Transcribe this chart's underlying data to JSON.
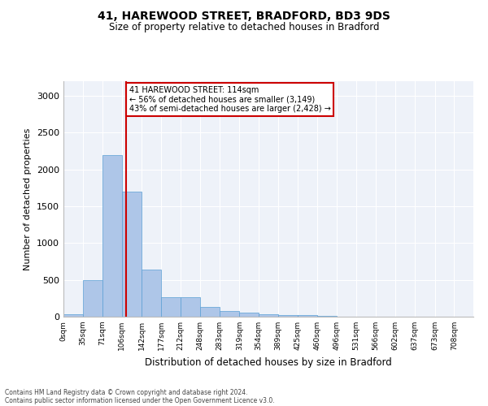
{
  "title1": "41, HAREWOOD STREET, BRADFORD, BD3 9DS",
  "title2": "Size of property relative to detached houses in Bradford",
  "xlabel": "Distribution of detached houses by size in Bradford",
  "ylabel": "Number of detached properties",
  "annotation_line1": "41 HAREWOOD STREET: 114sqm",
  "annotation_line2": "← 56% of detached houses are smaller (3,149)",
  "annotation_line3": "43% of semi-detached houses are larger (2,428) →",
  "property_size": 114,
  "bar_color": "#aec6e8",
  "bar_edge_color": "#5a9fd4",
  "marker_line_color": "#cc0000",
  "annotation_box_edge_color": "#cc0000",
  "background_color": "#eef2f9",
  "categories": [
    "0sqm",
    "35sqm",
    "71sqm",
    "106sqm",
    "142sqm",
    "177sqm",
    "212sqm",
    "248sqm",
    "283sqm",
    "319sqm",
    "354sqm",
    "389sqm",
    "425sqm",
    "460sqm",
    "496sqm",
    "531sqm",
    "566sqm",
    "602sqm",
    "637sqm",
    "673sqm",
    "708sqm"
  ],
  "bin_edges": [
    0,
    35,
    71,
    106,
    142,
    177,
    212,
    248,
    283,
    319,
    354,
    389,
    425,
    460,
    496,
    531,
    566,
    602,
    637,
    673,
    708,
    743
  ],
  "values": [
    30,
    500,
    2200,
    1700,
    640,
    270,
    270,
    130,
    80,
    50,
    30,
    25,
    20,
    10,
    5,
    3,
    2,
    1,
    1,
    0,
    0
  ],
  "ylim": [
    0,
    3200
  ],
  "yticks": [
    0,
    500,
    1000,
    1500,
    2000,
    2500,
    3000
  ],
  "footnote1": "Contains HM Land Registry data © Crown copyright and database right 2024.",
  "footnote2": "Contains public sector information licensed under the Open Government Licence v3.0."
}
